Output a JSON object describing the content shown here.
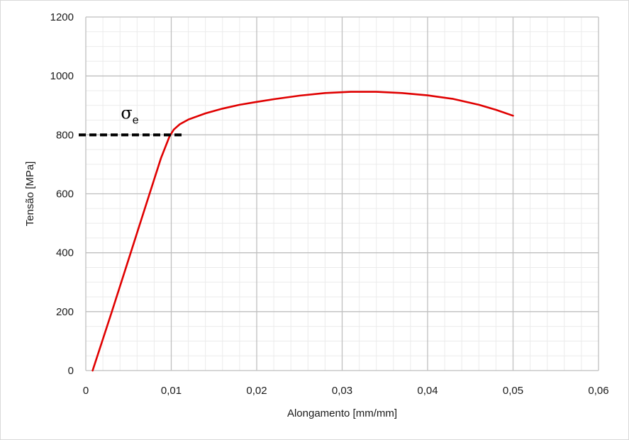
{
  "chart_data": {
    "type": "line",
    "title": "",
    "xlabel": "Alongamento [mm/mm]",
    "ylabel": "Tensão [MPa]",
    "xlim": [
      0,
      0.06
    ],
    "ylim": [
      0,
      1200
    ],
    "x_ticks": [
      {
        "value": 0,
        "label": "0"
      },
      {
        "value": 0.01,
        "label": "0,01"
      },
      {
        "value": 0.02,
        "label": "0,02"
      },
      {
        "value": 0.03,
        "label": "0,03"
      },
      {
        "value": 0.04,
        "label": "0,04"
      },
      {
        "value": 0.05,
        "label": "0,05"
      },
      {
        "value": 0.06,
        "label": "0,06"
      }
    ],
    "y_ticks": [
      {
        "value": 0,
        "label": "0"
      },
      {
        "value": 200,
        "label": "200"
      },
      {
        "value": 400,
        "label": "400"
      },
      {
        "value": 600,
        "label": "600"
      },
      {
        "value": 800,
        "label": "800"
      },
      {
        "value": 1000,
        "label": "1000"
      },
      {
        "value": 1200,
        "label": "1200"
      }
    ],
    "grid": {
      "major": true,
      "minor": true,
      "minor_x_step": 0.002,
      "minor_y_step": 50
    },
    "legend": "none",
    "series": [
      {
        "color": "#e00000",
        "x": [
          0.0008,
          0.003,
          0.005,
          0.007,
          0.0088,
          0.0098,
          0.0103,
          0.011,
          0.012,
          0.014,
          0.016,
          0.018,
          0.02,
          0.022,
          0.025,
          0.028,
          0.031,
          0.034,
          0.037,
          0.04,
          0.043,
          0.046,
          0.048,
          0.05
        ],
        "y": [
          0,
          196,
          377,
          558,
          721,
          795,
          818,
          836,
          852,
          873,
          889,
          902,
          912,
          921,
          933,
          942,
          946,
          946,
          942,
          934,
          922,
          902,
          885,
          865
        ]
      }
    ],
    "annotations": [
      {
        "type": "hline-dashed",
        "y": 800,
        "x_from": 0,
        "x_to": 0.0115,
        "color": "#000000"
      },
      {
        "type": "text",
        "symbol": "σ",
        "subscript": "e",
        "x": 0.0041,
        "y": 840
      }
    ]
  }
}
